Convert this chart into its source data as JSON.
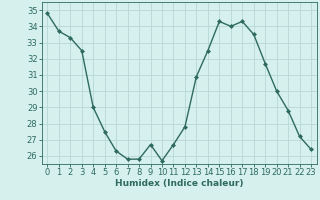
{
  "x": [
    0,
    1,
    2,
    3,
    4,
    5,
    6,
    7,
    8,
    9,
    10,
    11,
    12,
    13,
    14,
    15,
    16,
    17,
    18,
    19,
    20,
    21,
    22,
    23
  ],
  "y": [
    34.8,
    33.7,
    33.3,
    32.5,
    29.0,
    27.5,
    26.3,
    25.8,
    25.8,
    26.7,
    25.7,
    26.7,
    27.8,
    30.9,
    32.5,
    34.3,
    34.0,
    34.3,
    33.5,
    31.7,
    30.0,
    28.8,
    27.2,
    26.4
  ],
  "line_color": "#2e6b5e",
  "marker": "D",
  "marker_size": 2.0,
  "bg_color": "#d6f0ee",
  "grid_color": "#b8d8d4",
  "xlabel": "Humidex (Indice chaleur)",
  "ylim": [
    25.5,
    35.5
  ],
  "xlim": [
    -0.5,
    23.5
  ],
  "yticks": [
    26,
    27,
    28,
    29,
    30,
    31,
    32,
    33,
    34,
    35
  ],
  "xticks": [
    0,
    1,
    2,
    3,
    4,
    5,
    6,
    7,
    8,
    9,
    10,
    11,
    12,
    13,
    14,
    15,
    16,
    17,
    18,
    19,
    20,
    21,
    22,
    23
  ],
  "xlabel_fontsize": 6.5,
  "tick_fontsize": 6.0,
  "linewidth": 1.0
}
